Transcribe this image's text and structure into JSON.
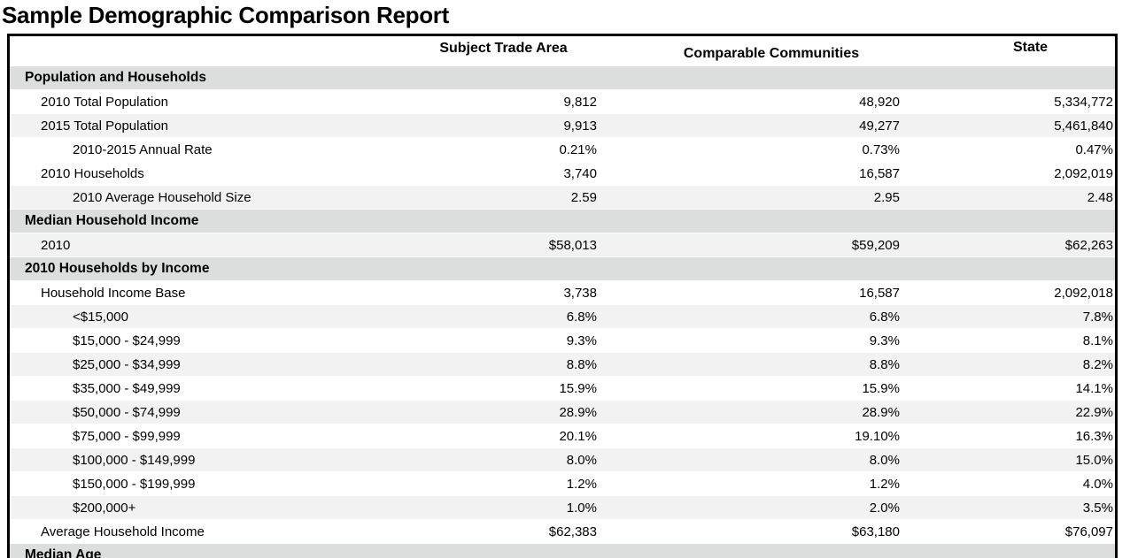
{
  "title": "Sample Demographic Comparison Report",
  "table": {
    "columns": [
      "Subject Trade Area",
      "Comparable Communities",
      "State"
    ],
    "rows": [
      {
        "type": "section",
        "label": "Population and Households"
      },
      {
        "type": "data",
        "indent": 1,
        "shade": "white",
        "label": "2010 Total Population",
        "values": [
          "9,812",
          "48,920",
          "5,334,772"
        ]
      },
      {
        "type": "data",
        "indent": 1,
        "shade": "light",
        "label": "2015 Total Population",
        "values": [
          "9,913",
          "49,277",
          "5,461,840"
        ]
      },
      {
        "type": "data",
        "indent": 2,
        "shade": "white",
        "label": "2010-2015 Annual Rate",
        "values": [
          "0.21%",
          "0.73%",
          "0.47%"
        ]
      },
      {
        "type": "data",
        "indent": 1,
        "shade": "white",
        "label": "2010 Households",
        "values": [
          "3,740",
          "16,587",
          "2,092,019"
        ]
      },
      {
        "type": "data",
        "indent": 2,
        "shade": "light",
        "label": "2010 Average Household Size",
        "values": [
          "2.59",
          "2.95",
          "2.48"
        ]
      },
      {
        "type": "section",
        "label": "Median Household Income"
      },
      {
        "type": "data",
        "indent": 1,
        "shade": "light",
        "label": "2010",
        "values": [
          "$58,013",
          "$59,209",
          "$62,263"
        ]
      },
      {
        "type": "section",
        "label": "2010 Households by Income"
      },
      {
        "type": "data",
        "indent": 1,
        "shade": "white",
        "label": "Household Income Base",
        "values": [
          "3,738",
          "16,587",
          "2,092,018"
        ]
      },
      {
        "type": "data",
        "indent": 2,
        "shade": "light",
        "label": "<$15,000",
        "values": [
          "6.8%",
          "6.8%",
          "7.8%"
        ]
      },
      {
        "type": "data",
        "indent": 2,
        "shade": "white",
        "label": "$15,000 - $24,999",
        "values": [
          "9.3%",
          "9.3%",
          "8.1%"
        ]
      },
      {
        "type": "data",
        "indent": 2,
        "shade": "light",
        "label": "$25,000 - $34,999",
        "values": [
          "8.8%",
          "8.8%",
          "8.2%"
        ]
      },
      {
        "type": "data",
        "indent": 2,
        "shade": "white",
        "label": "$35,000 - $49,999",
        "values": [
          "15.9%",
          "15.9%",
          "14.1%"
        ]
      },
      {
        "type": "data",
        "indent": 2,
        "shade": "light",
        "label": "$50,000 - $74,999",
        "values": [
          "28.9%",
          "28.9%",
          "22.9%"
        ]
      },
      {
        "type": "data",
        "indent": 2,
        "shade": "white",
        "label": "$75,000 - $99,999",
        "values": [
          "20.1%",
          "19.10%",
          "16.3%"
        ]
      },
      {
        "type": "data",
        "indent": 2,
        "shade": "light",
        "label": "$100,000 - $149,999",
        "values": [
          "8.0%",
          "8.0%",
          "15.0%"
        ]
      },
      {
        "type": "data",
        "indent": 2,
        "shade": "white",
        "label": "$150,000 - $199,999",
        "values": [
          "1.2%",
          "1.2%",
          "4.0%"
        ]
      },
      {
        "type": "data",
        "indent": 2,
        "shade": "light",
        "label": "$200,000+",
        "values": [
          "1.0%",
          "2.0%",
          "3.5%"
        ]
      },
      {
        "type": "data",
        "indent": 1,
        "shade": "white",
        "label": "Average Household Income",
        "values": [
          "$62,383",
          "$63,180",
          "$76,097"
        ]
      },
      {
        "type": "section",
        "label": "Median Age"
      }
    ],
    "colors": {
      "section_bg": "#dcdddd",
      "alt_row_bg": "#f2f2f2",
      "border": "#000000",
      "text": "#000000"
    }
  }
}
